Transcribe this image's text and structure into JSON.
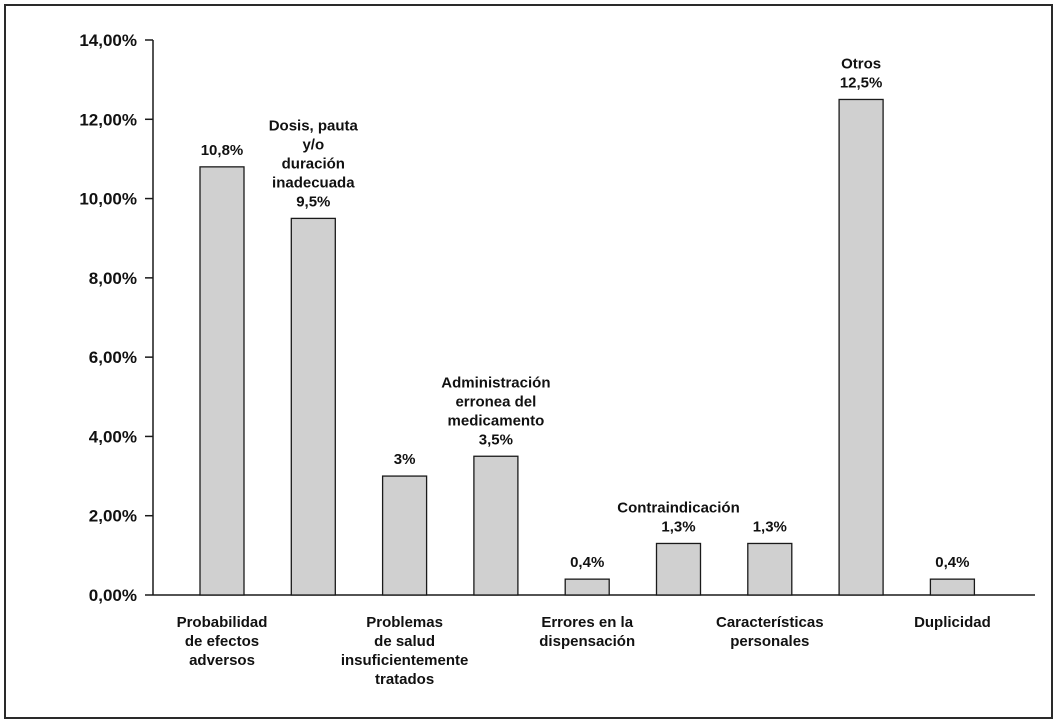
{
  "chart_data": {
    "type": "bar",
    "categories": [
      "Probabilidad de efectos adversos",
      "Dosis, pauta y/o duración inadecuada",
      "Problemas de salud insuficientemente tratados",
      "Administración erronea del medicamento",
      "Errores en la dispensación",
      "Contraindicación",
      "Características personales",
      "Otros",
      "Duplicidad"
    ],
    "values": [
      10.8,
      9.5,
      3.0,
      3.5,
      0.4,
      1.3,
      1.3,
      12.5,
      0.4
    ],
    "data_labels": [
      "10,8%",
      "Dosis, pauta\ny/o\nduración\ninadecuada\n9,5%",
      "3%",
      "Administración\nerronea del\nmedicamento\n3,5%",
      "0,4%",
      "Contraindicación\n1,3%",
      "1,3%",
      "Otros\n12,5%",
      "0,4%"
    ],
    "x_tick_labels": [
      "Probabilidad\nde efectos\nadversos",
      "",
      "Problemas\nde salud\ninsuficientemente\ntratados",
      "",
      "Errores en la\ndispensación",
      "",
      "Características\npersonales",
      "",
      "Duplicidad"
    ],
    "y_tick_labels": [
      "0,00%",
      "2,00%",
      "4,00%",
      "6,00%",
      "8,00%",
      "10,00%",
      "12,00%",
      "14,00%"
    ],
    "ylim": [
      0,
      14
    ],
    "grid": false,
    "bar_color": "#d0d0d0",
    "bar_edge_color": "#1a1a1a"
  }
}
